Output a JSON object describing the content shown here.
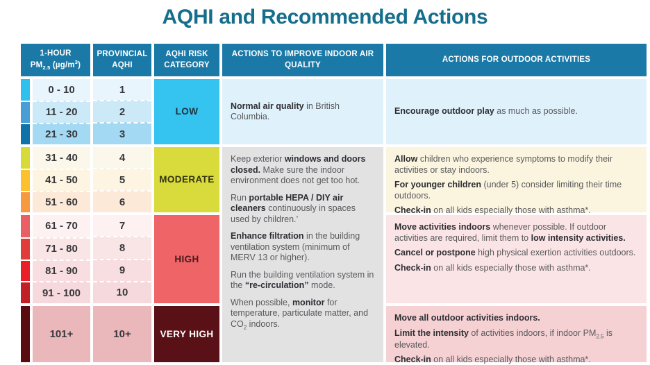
{
  "title": "AQHI and Recommended Actions",
  "colors": {
    "title": "#156e8c",
    "header_bg": "#1b79a7",
    "header_text": "#ffffff",
    "indoor_low_bg": "#dff1fb",
    "indoor_rest_bg": "#e2e2e3"
  },
  "header": {
    "col_pm_line1": "1-HOUR",
    "col_pm_line2": [
      {
        "t": "PM"
      },
      {
        "t": "2.5",
        "sub": 1
      },
      {
        "t": " (µg/m"
      },
      {
        "t": "3",
        "sup": 1
      },
      {
        "t": ")"
      }
    ],
    "col_aqhi": "PROVINCIAL AQHI",
    "col_risk": "AQHI RISK CATEGORY",
    "col_indoor": "ACTIONS TO IMPROVE INDOOR AIR QUALITY",
    "col_outdoor": "ACTIONS FOR OUTDOOR ACTIVITIES"
  },
  "sections": [
    {
      "category": "LOW",
      "category_bg": "#35c3ef",
      "category_color": "#20303c",
      "rows": [
        {
          "range": "0 - 10",
          "aqhi": "1",
          "swatch": "#2fc0ee",
          "bg": "#e8f5fc"
        },
        {
          "range": "11 - 20",
          "aqhi": "2",
          "swatch": "#4a9ed6",
          "bg": "#cbe9f7"
        },
        {
          "range": "21 - 30",
          "aqhi": "3",
          "swatch": "#0d73a8",
          "bg": "#a3d9f2"
        }
      ],
      "outdoor_bg": "#dff1fb",
      "outdoor": [
        [
          {
            "t": "Encourage outdoor play",
            "b": 1
          },
          {
            "t": " as much as possible."
          }
        ]
      ]
    },
    {
      "category": "MODERATE",
      "category_bg": "#d9db3d",
      "category_color": "#34340f",
      "rows": [
        {
          "range": "31 - 40",
          "aqhi": "4",
          "swatch": "#d7db3a",
          "bg": "#fbf7ea"
        },
        {
          "range": "41 - 50",
          "aqhi": "5",
          "swatch": "#fdc130",
          "bg": "#fdf4e1"
        },
        {
          "range": "51 - 60",
          "aqhi": "6",
          "swatch": "#f6993f",
          "bg": "#fce9d7"
        }
      ],
      "outdoor_bg": "#fbf5e0",
      "outdoor": [
        [
          {
            "t": "Allow",
            "b": 1
          },
          {
            "t": " children who experience symptoms to modify their activities or stay indoors."
          }
        ],
        [
          {
            "t": "For younger children",
            "b": 1
          },
          {
            "t": " (under 5) consider limiting their time outdoors."
          }
        ],
        [
          {
            "t": "Check-in",
            "b": 1
          },
          {
            "t": " on all kids especially those with asthma*."
          }
        ]
      ]
    },
    {
      "category": "HIGH",
      "category_bg": "#ef6467",
      "category_color": "#471a1d",
      "rows": [
        {
          "range": "61 - 70",
          "aqhi": "7",
          "swatch": "#ea5f63",
          "bg": "#fdf1f2"
        },
        {
          "range": "71 - 80",
          "aqhi": "8",
          "swatch": "#e03c3c",
          "bg": "#f9e4e6"
        },
        {
          "range": "81 - 90",
          "aqhi": "9",
          "swatch": "#e91e26",
          "bg": "#f8dee1"
        },
        {
          "range": "91 - 100",
          "aqhi": "10",
          "swatch": "#c02026",
          "bg": "#f6d9dc"
        }
      ],
      "outdoor_bg": "#fbe4e6",
      "outdoor": [
        [
          {
            "t": "Move activities indoors",
            "b": 1
          },
          {
            "t": " whenever possible. If outdoor activities are required, limit them to "
          },
          {
            "t": "low intensity activities.",
            "b": 1
          }
        ],
        [
          {
            "t": "Cancel or postpone",
            "b": 1
          },
          {
            "t": " high physical exertion activities outdoors."
          }
        ],
        [
          {
            "t": "Check-in",
            "b": 1
          },
          {
            "t": " on all kids especially those with asthma*."
          }
        ]
      ]
    },
    {
      "category": "VERY HIGH",
      "category_bg": "#591016",
      "category_color": "#ffffff",
      "rows": [
        {
          "range": "101+",
          "aqhi": "10+",
          "swatch": "#5a0d11",
          "bg": "#eab7bb"
        }
      ],
      "outdoor_bg": "#f5d1d4",
      "outdoor": [
        [
          {
            "t": "Move all outdoor activities indoors.",
            "b": 1
          }
        ],
        [
          {
            "t": "Limit the intensity",
            "b": 1
          },
          {
            "t": " of activities indoors, if indoor PM"
          },
          {
            "t": "2.5",
            "sub": 1
          },
          {
            "t": " is elevated."
          }
        ],
        [
          {
            "t": "Check-in",
            "b": 1
          },
          {
            "t": " on all kids especially those with asthma*."
          }
        ]
      ]
    }
  ],
  "indoor": {
    "low": [
      [
        {
          "t": "Normal air quality",
          "b": 1
        },
        {
          "t": " in British Columbia."
        }
      ]
    ],
    "rest": [
      [
        {
          "t": "Keep exterior "
        },
        {
          "t": "windows and doors closed.",
          "b": 1
        },
        {
          "t": " Make sure the indoor environment does not get too hot."
        }
      ],
      [
        {
          "t": "Run "
        },
        {
          "t": "portable HEPA / DIY air cleaners",
          "b": 1
        },
        {
          "t": " continuously in spaces used by children.’"
        }
      ],
      [
        {
          "t": "Enhance filtration",
          "b": 1
        },
        {
          "t": " in the building ventilation system (minimum of MERV 13 or higher)."
        }
      ],
      [
        {
          "t": "Run the building ventilation system in the "
        },
        {
          "t": "“re-circulation”",
          "b": 1
        },
        {
          "t": " mode."
        }
      ],
      [
        {
          "t": "When possible, "
        },
        {
          "t": "monitor",
          "b": 1
        },
        {
          "t": " for temperature, particulate matter, and CO"
        },
        {
          "t": "2",
          "sub": 1
        },
        {
          "t": " indoors."
        }
      ]
    ]
  }
}
